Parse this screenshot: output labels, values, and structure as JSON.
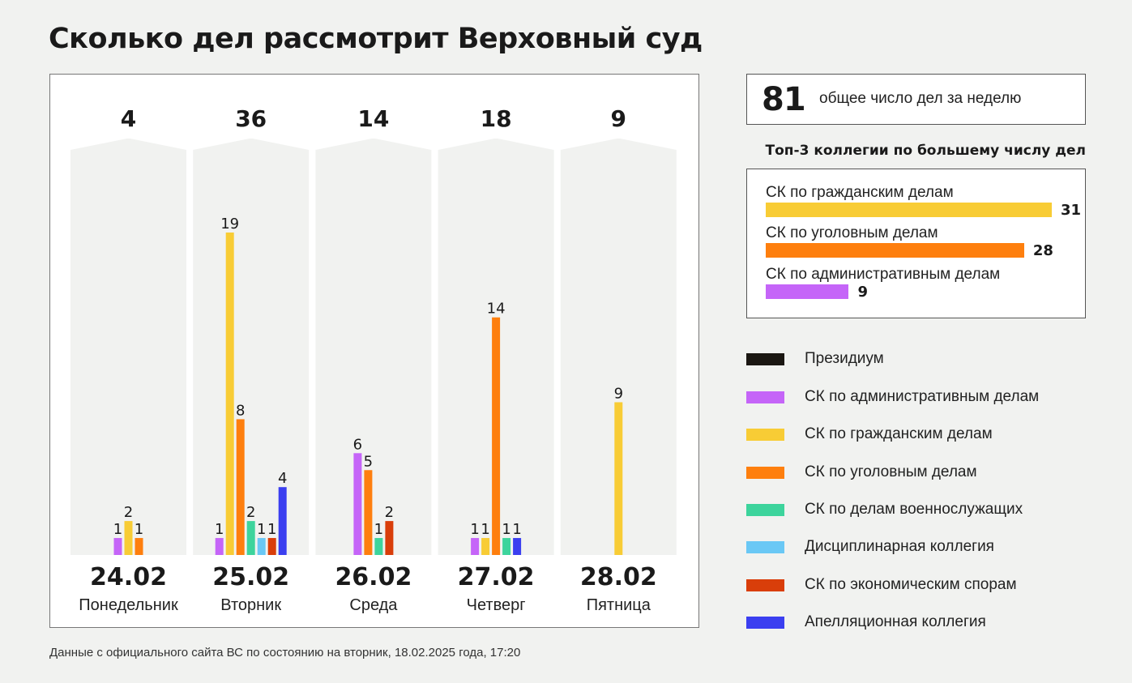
{
  "title": "Сколько дел рассмотрит Верховный суд",
  "footnote": "Данные с официального сайта ВС по состоянию на вторник, 18.02.2025 года, 17:20",
  "total": {
    "value": "81",
    "label": "общее число дел за неделю"
  },
  "top3": {
    "title": "Топ-3 коллегии по большему числу дел",
    "max": 31,
    "items": [
      {
        "label": "СК по гражданским делам",
        "value": 31,
        "color": "#f8cc35"
      },
      {
        "label": "СК по уголовным делам",
        "value": 28,
        "color": "#fe7f0e"
      },
      {
        "label": "СК по административным делам",
        "value": 9,
        "color": "#c565f8"
      }
    ]
  },
  "legend": [
    {
      "label": "Президиум",
      "color": "#1b1712"
    },
    {
      "label": "СК по административным делам",
      "color": "#c565f8"
    },
    {
      "label": "СК по гражданским делам",
      "color": "#f8cc35"
    },
    {
      "label": "СК по уголовным делам",
      "color": "#fe7f0e"
    },
    {
      "label": "СК по делам военнослужащих",
      "color": "#3dd49c"
    },
    {
      "label": "Дисциплинарная коллегия",
      "color": "#6ac8f5"
    },
    {
      "label": "СК по экономическим спорам",
      "color": "#d93e0a"
    },
    {
      "label": "Апелляционная коллегия",
      "color": "#3b3ff0"
    }
  ],
  "chart_data": {
    "type": "bar",
    "title": "Сколько дел рассмотрит Верховный суд",
    "ymax": 19,
    "categories": [
      "24.02",
      "25.02",
      "26.02",
      "27.02",
      "28.02"
    ],
    "weekdays": [
      "Понедельник",
      "Вторник",
      "Среда",
      "Четверг",
      "Пятница"
    ],
    "totals": [
      4,
      36,
      14,
      18,
      9
    ],
    "series": [
      {
        "name": "Президиум",
        "values": [
          0,
          0,
          0,
          0,
          0
        ]
      },
      {
        "name": "СК по административным делам",
        "values": [
          1,
          1,
          6,
          1,
          0
        ]
      },
      {
        "name": "СК по гражданским делам",
        "values": [
          2,
          19,
          0,
          1,
          9
        ]
      },
      {
        "name": "СК по уголовным делам",
        "values": [
          1,
          8,
          5,
          14,
          0
        ]
      },
      {
        "name": "СК по делам военнослужащих",
        "values": [
          0,
          2,
          1,
          1,
          0
        ]
      },
      {
        "name": "Дисциплинарная коллегия",
        "values": [
          0,
          1,
          0,
          0,
          0
        ]
      },
      {
        "name": "СК по экономическим спорам",
        "values": [
          0,
          1,
          2,
          0,
          0
        ]
      },
      {
        "name": "Апелляционная коллегия",
        "values": [
          0,
          4,
          0,
          1,
          0
        ]
      }
    ]
  }
}
